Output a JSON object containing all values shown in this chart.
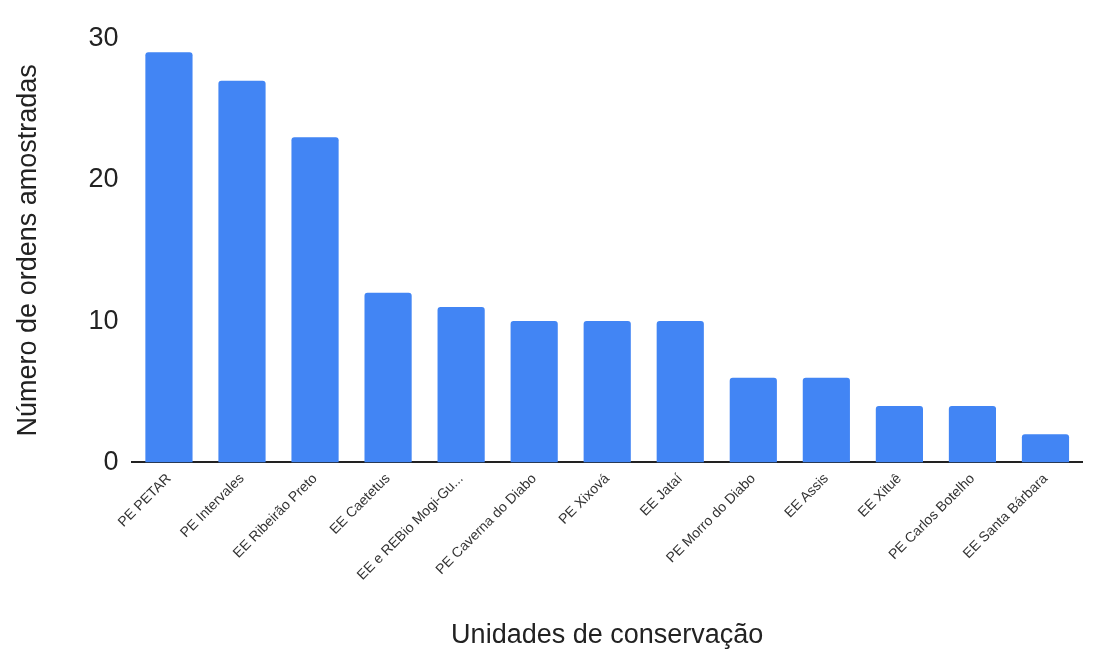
{
  "chart_data": {
    "type": "bar",
    "xlabel": "Unidades de conservação",
    "ylabel": "Número de ordens amostradas",
    "categories": [
      "PE PETAR",
      "PE Intervales",
      "EE Ribeirão Preto",
      "EE Caetetus",
      "EE e REBio Mogi-Gu...",
      "PE Caverna do Diabo",
      "PE Xixová",
      "EE Jataí",
      "PE Morro do Diabo",
      "EE Assis",
      "EE Xituê",
      "PE Carlos Botelho",
      "EE Santa Bárbara"
    ],
    "values": [
      29,
      27,
      23,
      12,
      11,
      10,
      10,
      10,
      6,
      6,
      4,
      4,
      2
    ],
    "color": "#4285f4",
    "ylim": [
      0,
      30
    ],
    "yticks": [
      0,
      10,
      20,
      30
    ],
    "grid": false,
    "legend": false
  }
}
